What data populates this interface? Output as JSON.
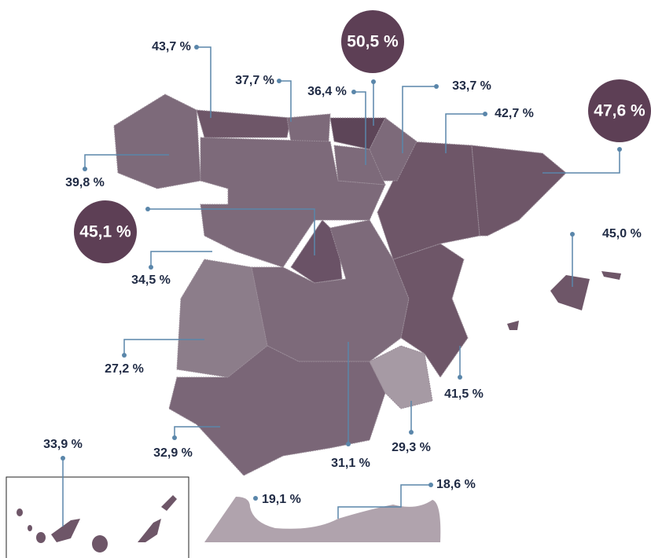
{
  "labels": [
    "43,7 %",
    "37,7 %",
    "36,4 %",
    "33,7 %",
    "42,7 %",
    "39,8 %",
    "34,5 %",
    "27,2 %",
    "32,9 %",
    "31,1 %",
    "29,3 %",
    "41,5 %",
    "45,0 %",
    "33,9 %",
    "19,1 %",
    "18,6 %"
  ],
  "badges": [
    "50,5 %",
    "47,6 %",
    "45,1 %"
  ]
}
